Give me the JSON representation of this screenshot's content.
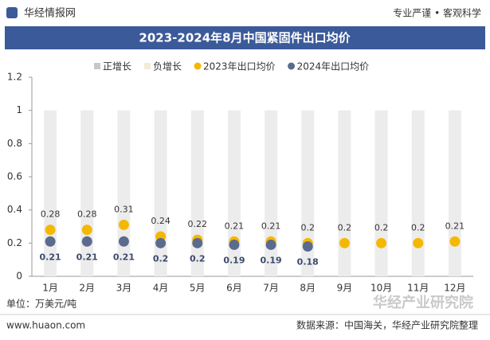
{
  "header": {
    "brand": "华经情报网",
    "slogan": "专业严谨 • 客观科学"
  },
  "chart_data": {
    "type": "scatter",
    "title": "2023-2024年8月中国紧固件出口均价",
    "legend": [
      {
        "name": "正增长",
        "color": "#c8c8c8"
      },
      {
        "name": "负增长",
        "color": "#f3ead8"
      }
    ],
    "categories": [
      "1月",
      "2月",
      "3月",
      "4月",
      "5月",
      "6月",
      "7月",
      "8月",
      "9月",
      "10月",
      "11月",
      "12月"
    ],
    "series": [
      {
        "name": "2023年出口均价",
        "color": "#f5b800",
        "values": [
          0.28,
          0.28,
          0.31,
          0.24,
          0.22,
          0.21,
          0.21,
          0.2,
          0.2,
          0.2,
          0.2,
          0.21
        ]
      },
      {
        "name": "2024年出口均价",
        "color": "#5b6b8e",
        "values": [
          0.21,
          0.21,
          0.21,
          0.2,
          0.2,
          0.19,
          0.19,
          0.18
        ]
      }
    ],
    "ylim": [
      0,
      1.2
    ],
    "yticks": [
      0,
      0.2,
      0.4,
      0.6,
      0.8,
      1,
      1.2
    ],
    "unit": "单位：万美元/吨"
  },
  "footer": {
    "website": "www.huaon.com",
    "source": "数据来源：中国海关，华经产业研究院整理",
    "logo": "华经产业研究院"
  }
}
